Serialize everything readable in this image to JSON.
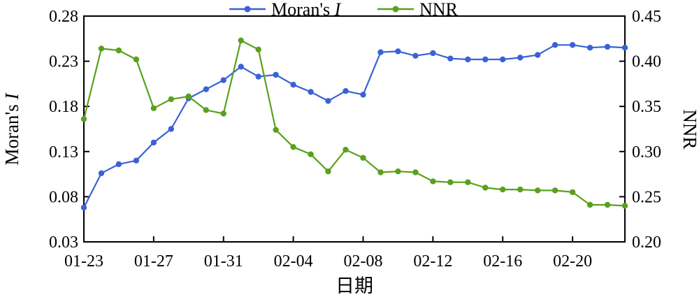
{
  "chart_data": {
    "type": "line",
    "x": [
      "01-23",
      "01-24",
      "01-25",
      "01-26",
      "01-27",
      "01-28",
      "01-29",
      "01-30",
      "01-31",
      "02-01",
      "02-02",
      "02-03",
      "02-04",
      "02-05",
      "02-06",
      "02-07",
      "02-08",
      "02-09",
      "02-10",
      "02-11",
      "02-12",
      "02-13",
      "02-14",
      "02-15",
      "02-16",
      "02-17",
      "02-18",
      "02-19",
      "02-20",
      "02-21",
      "02-22",
      "02-23"
    ],
    "x_tick_labels": [
      "01-23",
      "01-27",
      "01-31",
      "02-04",
      "02-08",
      "02-12",
      "02-16",
      "02-20"
    ],
    "xlabel": "日期",
    "ylabel_left_prefix": "Moran's ",
    "ylabel_left_italic": "I",
    "ylabel_right": "NNR",
    "ylim_left": [
      0.03,
      0.28
    ],
    "yticks_left": [
      "0.03",
      "0.08",
      "0.13",
      "0.18",
      "0.23",
      "0.28"
    ],
    "ylim_right": [
      0.2,
      0.45
    ],
    "yticks_right": [
      "0.20",
      "0.25",
      "0.30",
      "0.35",
      "0.40",
      "0.45"
    ],
    "grid": false,
    "legend_position": "top-center",
    "series": [
      {
        "name_prefix": "Moran's ",
        "name_italic": "I",
        "axis": "left",
        "color": "#3a62d6",
        "values": [
          0.068,
          0.106,
          0.116,
          0.12,
          0.14,
          0.155,
          0.189,
          0.199,
          0.209,
          0.224,
          0.213,
          0.215,
          0.204,
          0.196,
          0.186,
          0.197,
          0.193,
          0.24,
          0.241,
          0.236,
          0.239,
          0.233,
          0.232,
          0.232,
          0.232,
          0.234,
          0.237,
          0.248,
          0.248,
          0.245,
          0.246,
          0.245
        ]
      },
      {
        "name": "NNR",
        "axis": "right",
        "color": "#5aa01e",
        "values": [
          0.336,
          0.414,
          0.412,
          0.402,
          0.348,
          0.358,
          0.361,
          0.346,
          0.342,
          0.423,
          0.413,
          0.324,
          0.305,
          0.297,
          0.278,
          0.302,
          0.293,
          0.277,
          0.278,
          0.277,
          0.267,
          0.266,
          0.266,
          0.26,
          0.258,
          0.258,
          0.257,
          0.257,
          0.255,
          0.241,
          0.241,
          0.24
        ]
      }
    ]
  }
}
